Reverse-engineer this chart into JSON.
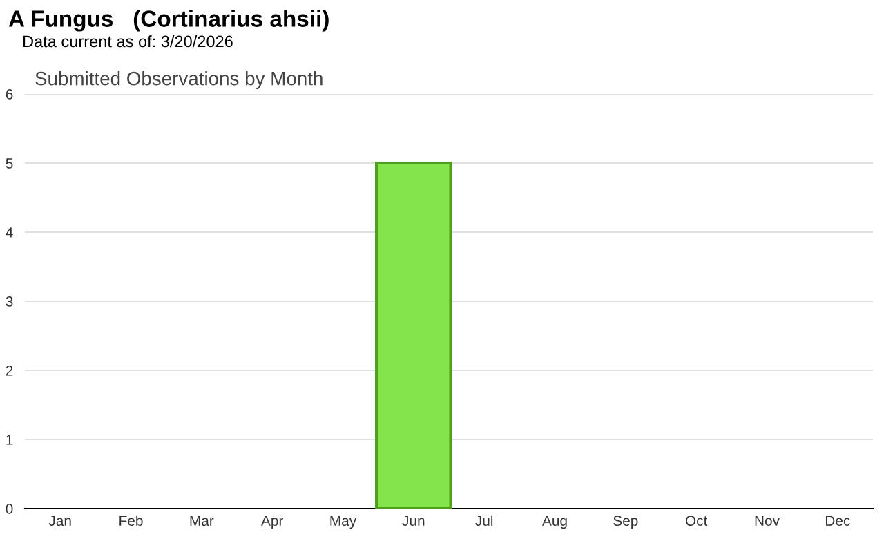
{
  "chart_data": {
    "type": "bar",
    "title": "A Fungus   (Cortinarius ahsii)",
    "subtitle": "Data current as of: 3/20/2026",
    "annotations": [
      "Submitted Observations by Month"
    ],
    "categories": [
      "Jan",
      "Feb",
      "Mar",
      "Apr",
      "May",
      "Jun",
      "Jul",
      "Aug",
      "Sep",
      "Oct",
      "Nov",
      "Dec"
    ],
    "values": [
      0,
      0,
      0,
      0,
      0,
      5,
      0,
      0,
      0,
      0,
      0,
      0
    ],
    "color": "#84e44c",
    "ylim": [
      0,
      6
    ],
    "yticks": [
      0,
      1,
      2,
      3,
      4,
      5,
      6
    ],
    "grid": "y"
  }
}
